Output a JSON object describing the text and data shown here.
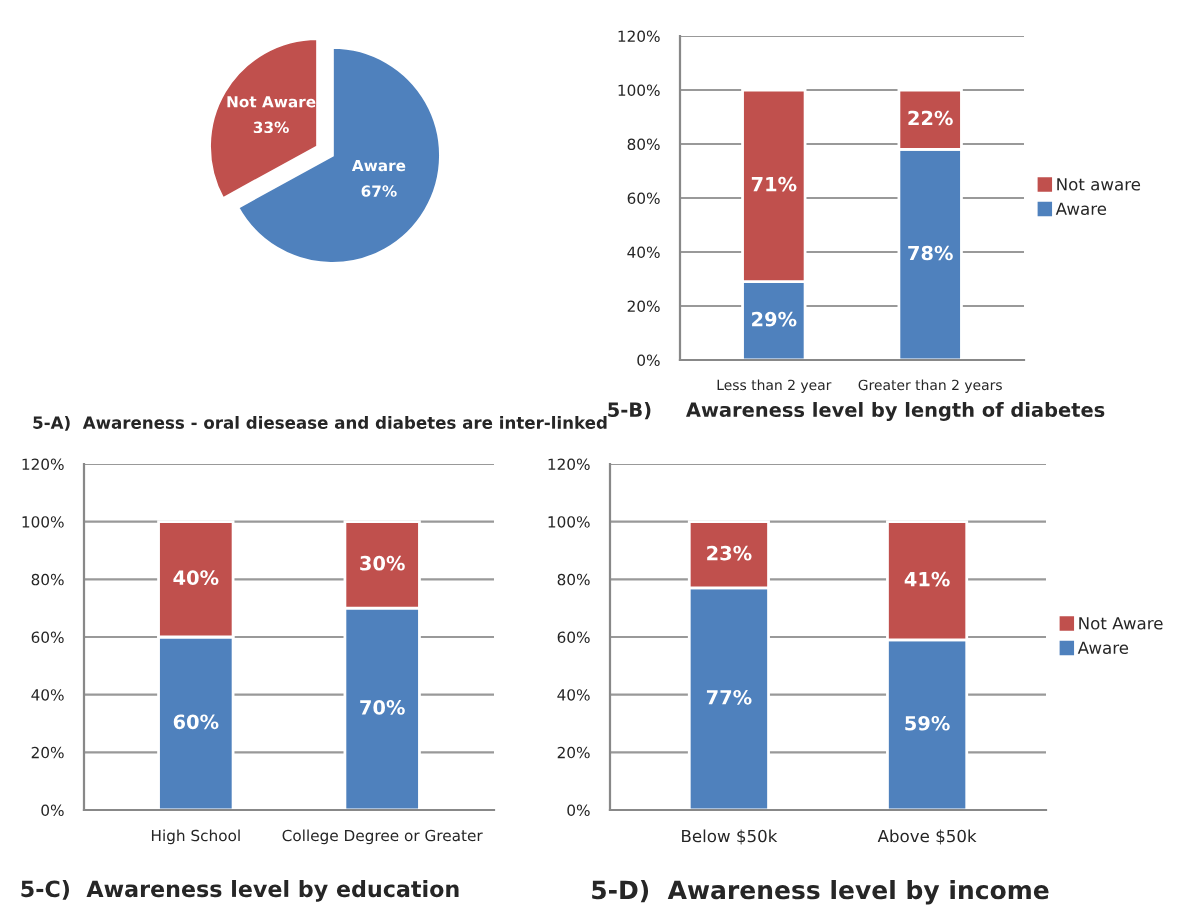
{
  "chart_data": [
    {
      "type": "pie",
      "title": "5-A)  Awareness - oral diesease and diabetes are inter-linked",
      "categories": [
        "Aware",
        "Not Aware"
      ],
      "values": [
        67,
        33
      ],
      "value_labels": [
        "67%",
        "33%"
      ],
      "colors": [
        "#4f81bd",
        "#c0504d"
      ]
    },
    {
      "type": "bar",
      "stacked": true,
      "title": "5-B)     Awareness level by length of diabetes",
      "categories": [
        "Less than 2 year",
        "Greater than 2 years"
      ],
      "series": [
        {
          "name": "Aware",
          "color": "#4f81bd",
          "values": [
            29,
            78
          ],
          "value_labels": [
            "29%",
            "78%"
          ]
        },
        {
          "name": "Not aware",
          "color": "#c0504d",
          "values": [
            71,
            22
          ],
          "value_labels": [
            "71%",
            "22%"
          ]
        }
      ],
      "ylim": [
        0,
        120
      ],
      "yticks": [
        {
          "value": 0,
          "label": "0%"
        },
        {
          "value": 20,
          "label": "20%"
        },
        {
          "value": 40,
          "label": "40%"
        },
        {
          "value": 60,
          "label": "60%"
        },
        {
          "value": 80,
          "label": "80%"
        },
        {
          "value": 100,
          "label": "100%"
        },
        {
          "value": 120,
          "label": "120%"
        }
      ],
      "grid": "y",
      "legend": "right"
    },
    {
      "type": "bar",
      "stacked": true,
      "title": "5-C)  Awareness level by education",
      "categories": [
        "High School",
        "College Degree or Greater"
      ],
      "series": [
        {
          "color": "#4f81bd",
          "values": [
            60,
            70
          ],
          "value_labels": [
            "60%",
            "70%"
          ]
        },
        {
          "color": "#c0504d",
          "values": [
            40,
            30
          ],
          "value_labels": [
            "40%",
            "30%"
          ]
        }
      ],
      "ylim": [
        0,
        120
      ],
      "yticks": [
        {
          "value": 0,
          "label": "0%"
        },
        {
          "value": 20,
          "label": "20%"
        },
        {
          "value": 40,
          "label": "40%"
        },
        {
          "value": 60,
          "label": "60%"
        },
        {
          "value": 80,
          "label": "80%"
        },
        {
          "value": 100,
          "label": "100%"
        },
        {
          "value": 120,
          "label": "120%"
        }
      ],
      "grid": "y"
    },
    {
      "type": "bar",
      "stacked": true,
      "title": "5-D)  Awareness level by income",
      "categories": [
        "Below $50k",
        "Above $50k"
      ],
      "series": [
        {
          "name": "Aware",
          "color": "#4f81bd",
          "values": [
            77,
            59
          ],
          "value_labels": [
            "77%",
            "59%"
          ]
        },
        {
          "name": "Not Aware",
          "color": "#c0504d",
          "values": [
            23,
            41
          ],
          "value_labels": [
            "23%",
            "41%"
          ]
        }
      ],
      "ylim": [
        0,
        120
      ],
      "yticks": [
        {
          "value": 0,
          "label": "0%"
        },
        {
          "value": 20,
          "label": "20%"
        },
        {
          "value": 40,
          "label": "40%"
        },
        {
          "value": 60,
          "label": "60%"
        },
        {
          "value": 80,
          "label": "80%"
        },
        {
          "value": 100,
          "label": "100%"
        },
        {
          "value": 120,
          "label": "120%"
        }
      ],
      "grid": "y",
      "legend": "right"
    }
  ]
}
